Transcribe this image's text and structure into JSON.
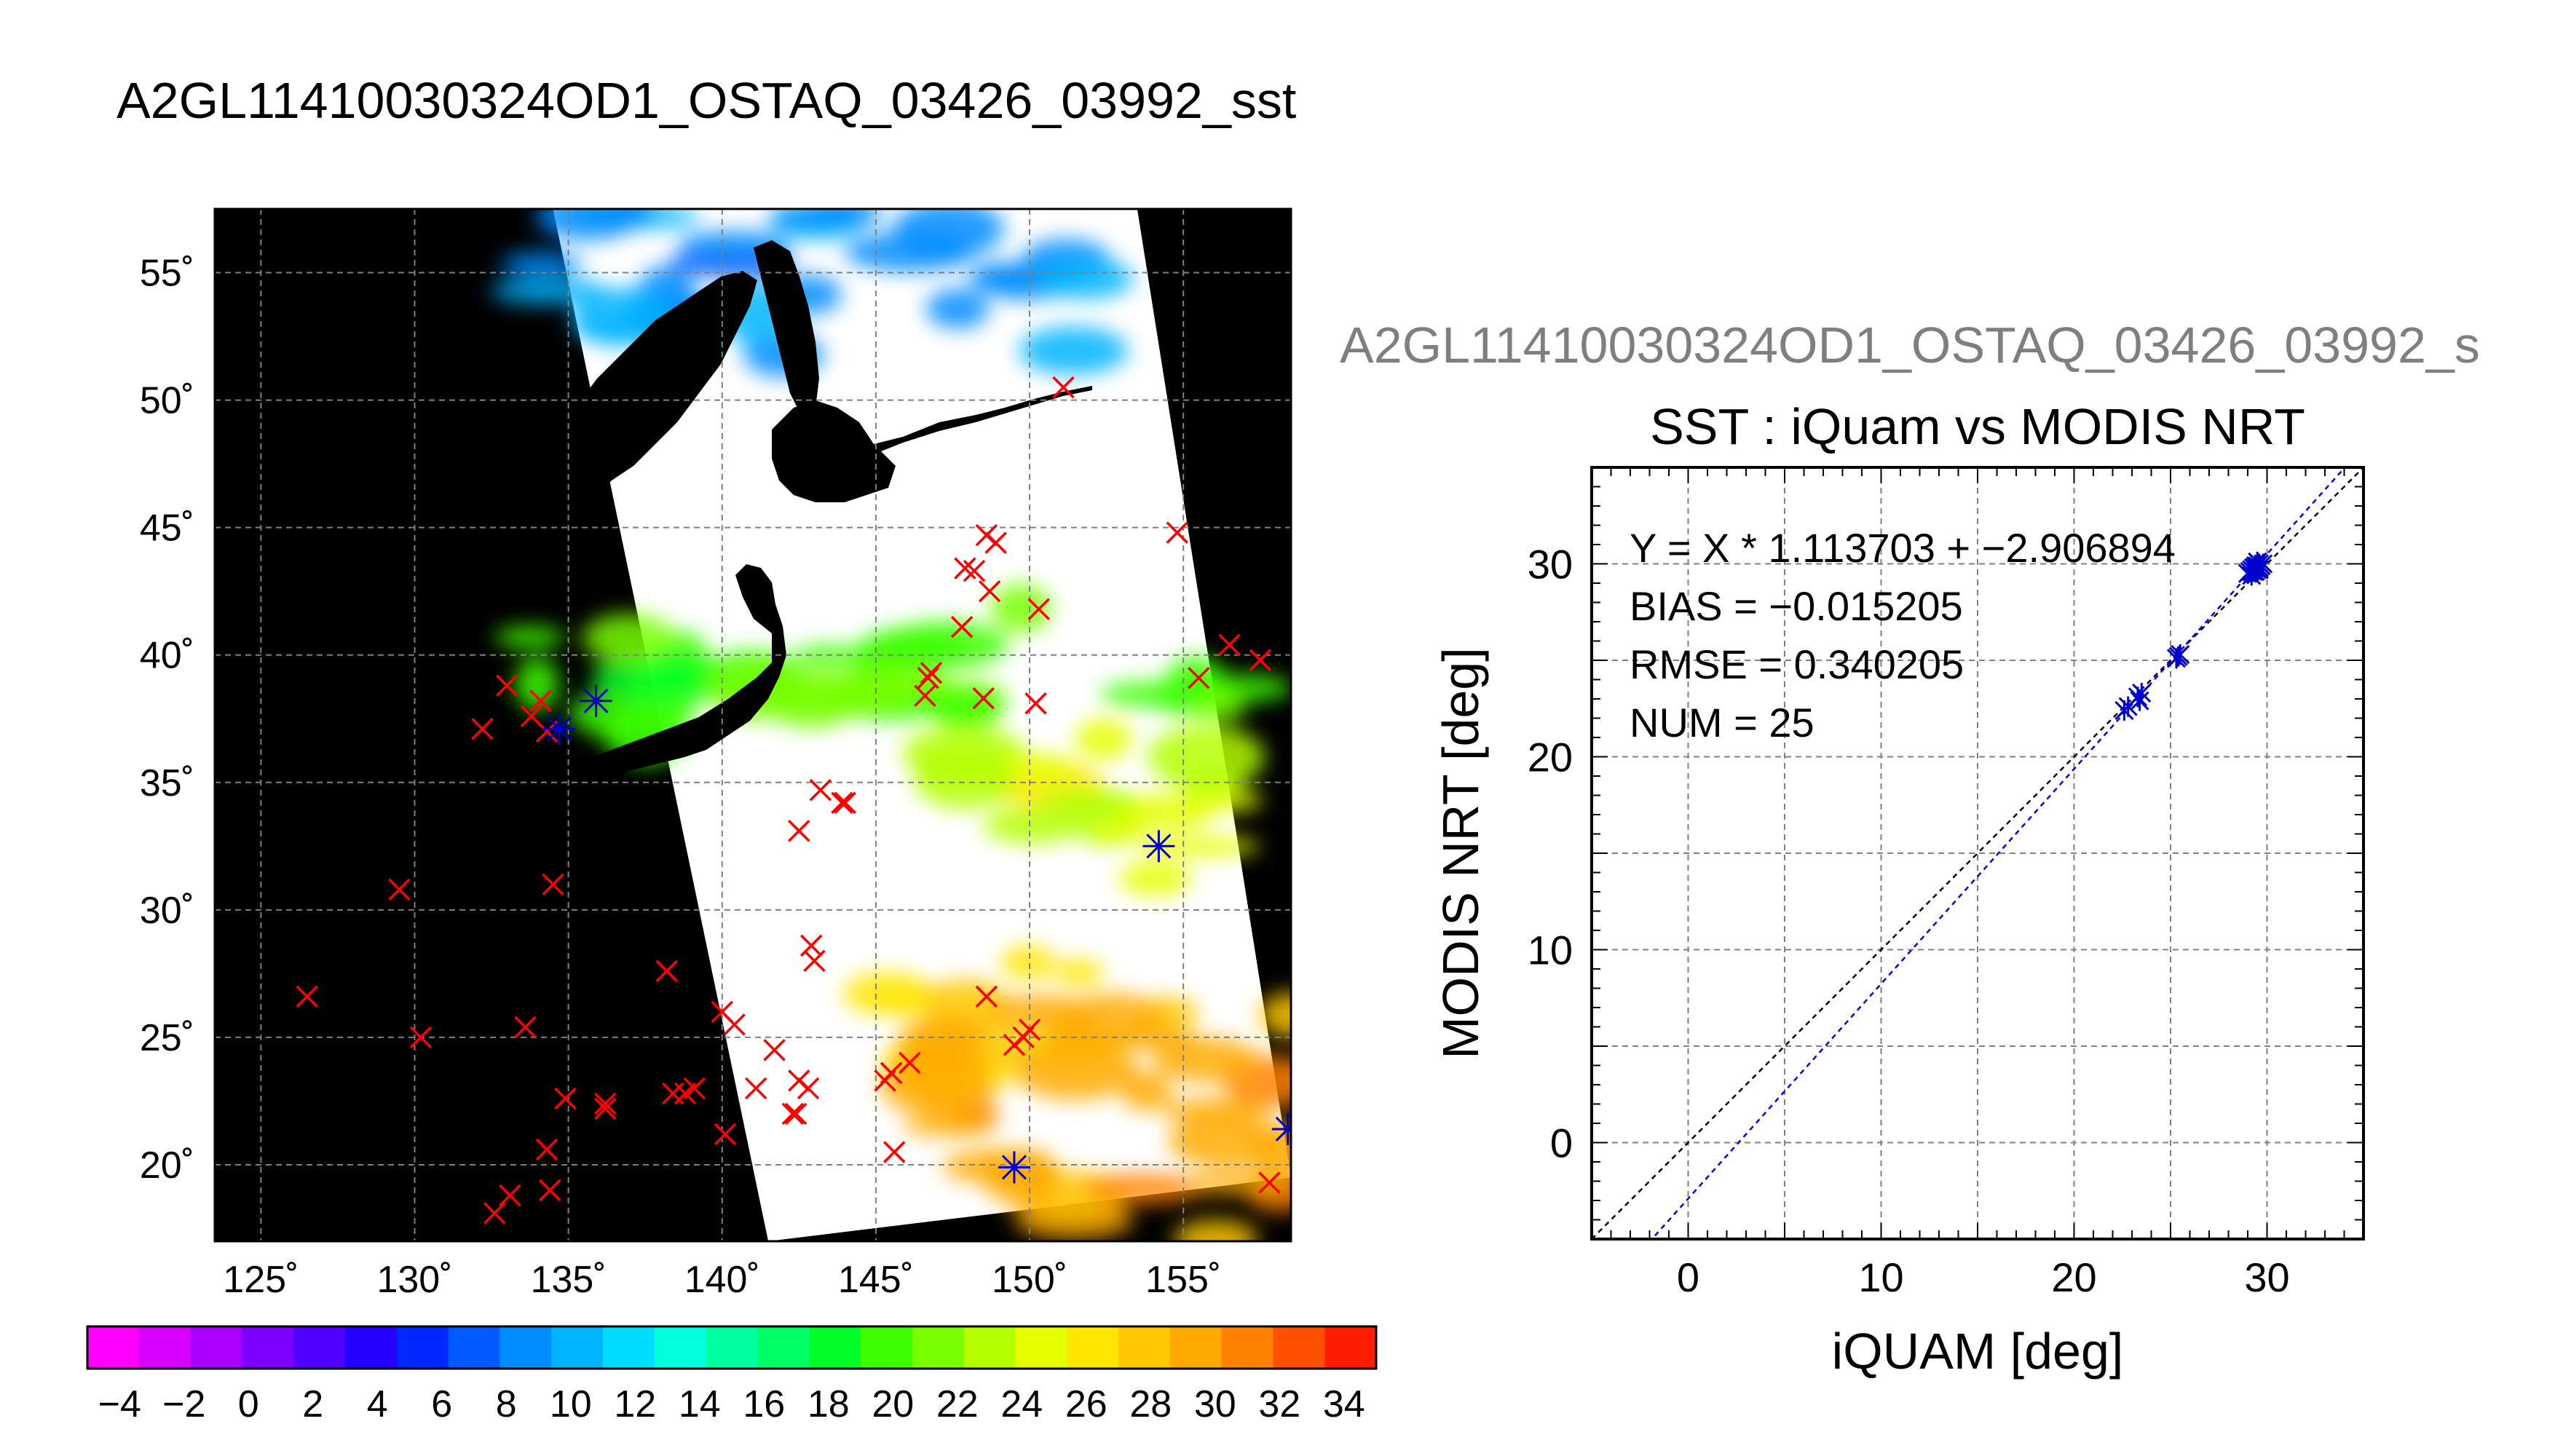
{
  "main_title": "A2GL11410030324OD1_OSTAQ_03426_03992_sst",
  "scatter_header": "A2GL11410030324OD1_OSTAQ_03426_03992_s",
  "colors": {
    "land": "#000000",
    "cloud": "#ffffff",
    "grid": "#808080",
    "insitu_marker": "#ff0000",
    "matchup_marker": "#0000cc",
    "fit_line": "#0000ff",
    "identity_line": "#000000"
  },
  "chart_data": [
    {
      "type": "heatmap",
      "title": "A2GL11410030324OD1_OSTAQ_03426_03992_sst",
      "xlim": [
        123.5,
        158.5
      ],
      "ylim": [
        17,
        57.5
      ],
      "grid": true,
      "x_ticks": [
        125,
        130,
        135,
        140,
        145,
        150,
        155
      ],
      "y_ticks": [
        20,
        25,
        30,
        35,
        40,
        45,
        50,
        55
      ],
      "x_tick_labels": [
        "125˚",
        "130˚",
        "135˚",
        "140˚",
        "145˚",
        "150˚",
        "155˚"
      ],
      "y_tick_labels": [
        "20˚",
        "25˚",
        "30˚",
        "35˚",
        "40˚",
        "45˚",
        "50˚",
        "55˚"
      ],
      "swath_corners": [
        [
          134.5,
          57.5
        ],
        [
          153.5,
          57.5
        ],
        [
          158.5,
          19.5
        ],
        [
          141.5,
          17
        ]
      ],
      "sst_regions": [
        {
          "name": "okhotsk",
          "value_degC": 9,
          "lon": [
            134,
            152
          ],
          "lat": [
            51.5,
            57.5
          ]
        },
        {
          "name": "japan-sea",
          "value_degC": 20,
          "lon": [
            133,
            142
          ],
          "lat": [
            36.5,
            41
          ]
        },
        {
          "name": "north-pacific-band",
          "value_degC": 21,
          "lon": [
            142,
            157
          ],
          "lat": [
            37,
            42
          ]
        },
        {
          "name": "east-of-japan",
          "value_degC": 24,
          "lon": [
            147,
            157
          ],
          "lat": [
            31,
            37
          ]
        },
        {
          "name": "subtropics",
          "value_degC": 27,
          "lon": [
            145,
            152
          ],
          "lat": [
            23,
            28
          ]
        },
        {
          "name": "tropics",
          "value_degC": 29.5,
          "lon": [
            147,
            158.5
          ],
          "lat": [
            17,
            26
          ]
        }
      ],
      "insitu_points": [
        [
          126.5,
          26.6
        ],
        [
          129.5,
          30.8
        ],
        [
          130.2,
          25.0
        ],
        [
          132.2,
          37.1
        ],
        [
          133.0,
          38.8
        ],
        [
          133.6,
          25.4
        ],
        [
          133.8,
          37.6
        ],
        [
          134.1,
          38.2
        ],
        [
          134.3,
          37.0
        ],
        [
          134.5,
          31.0
        ],
        [
          134.3,
          20.6
        ],
        [
          134.4,
          19.0
        ],
        [
          133.1,
          18.8
        ],
        [
          132.6,
          18.1
        ],
        [
          134.9,
          22.6
        ],
        [
          136.2,
          22.4
        ],
        [
          136.2,
          22.2
        ],
        [
          138.2,
          27.6
        ],
        [
          138.4,
          22.8
        ],
        [
          138.8,
          22.8
        ],
        [
          139.1,
          23.0
        ],
        [
          140.0,
          26.0
        ],
        [
          140.4,
          25.5
        ],
        [
          140.1,
          21.2
        ],
        [
          141.1,
          23.0
        ],
        [
          141.7,
          24.5
        ],
        [
          142.3,
          22.0
        ],
        [
          142.4,
          22.0
        ],
        [
          142.5,
          23.3
        ],
        [
          142.8,
          23.0
        ],
        [
          142.9,
          28.6
        ],
        [
          143.0,
          28.0
        ],
        [
          142.5,
          33.1
        ],
        [
          143.2,
          34.7
        ],
        [
          143.9,
          34.2
        ],
        [
          144.0,
          34.2
        ],
        [
          145.3,
          23.3
        ],
        [
          145.5,
          23.6
        ],
        [
          146.1,
          24.0
        ],
        [
          145.6,
          20.5
        ],
        [
          146.6,
          38.4
        ],
        [
          146.7,
          39.1
        ],
        [
          146.8,
          39.3
        ],
        [
          147.8,
          41.1
        ],
        [
          147.9,
          43.4
        ],
        [
          148.2,
          43.3
        ],
        [
          148.6,
          44.7
        ],
        [
          148.9,
          44.4
        ],
        [
          148.5,
          38.3
        ],
        [
          148.7,
          42.5
        ],
        [
          148.6,
          26.6
        ],
        [
          149.5,
          24.7
        ],
        [
          149.8,
          25.0
        ],
        [
          150.0,
          25.3
        ],
        [
          150.2,
          38.1
        ],
        [
          150.3,
          41.8
        ],
        [
          151.1,
          50.5
        ],
        [
          154.8,
          44.8
        ],
        [
          155.5,
          39.1
        ],
        [
          156.5,
          40.4
        ],
        [
          157.5,
          39.8
        ],
        [
          157.8,
          19.3
        ]
      ],
      "matchup_points": [
        [
          134.7,
          37.1
        ],
        [
          135.9,
          38.2
        ],
        [
          149.5,
          19.9
        ],
        [
          154.2,
          32.5
        ],
        [
          158.4,
          21.4
        ]
      ]
    },
    {
      "type": "scatter",
      "title": "SST : iQuam vs MODIS NRT",
      "xlabel": "iQUAM [deg]",
      "ylabel": "MODIS NRT [deg]",
      "xlim": [
        -5,
        35
      ],
      "ylim": [
        -5,
        35
      ],
      "x_ticks": [
        0,
        10,
        20,
        30
      ],
      "y_ticks": [
        0,
        10,
        20,
        30
      ],
      "grid": true,
      "stats": [
        "Y = X * 1.113703 + −2.906894",
        "BIAS = −0.015205",
        "RMSE = 0.340205",
        "NUM = 25"
      ],
      "fit": {
        "slope": 1.113703,
        "intercept": -2.906894
      },
      "points": [
        [
          22.6,
          22.4
        ],
        [
          22.8,
          22.6
        ],
        [
          23.3,
          23.1
        ],
        [
          23.5,
          23.3
        ],
        [
          23.4,
          22.9
        ],
        [
          25.4,
          25.2
        ],
        [
          25.5,
          25.3
        ],
        [
          25.3,
          25.1
        ],
        [
          29.0,
          29.5
        ],
        [
          29.2,
          29.7
        ],
        [
          29.3,
          29.6
        ],
        [
          29.4,
          29.8
        ],
        [
          29.5,
          29.9
        ],
        [
          29.6,
          30.0
        ],
        [
          29.7,
          29.9
        ],
        [
          29.2,
          29.4
        ],
        [
          29.4,
          29.6
        ],
        [
          29.5,
          29.7
        ],
        [
          29.6,
          29.8
        ],
        [
          29.3,
          29.8
        ],
        [
          29.5,
          30.1
        ],
        [
          29.8,
          30.0
        ],
        [
          29.1,
          29.6
        ],
        [
          29.4,
          29.9
        ],
        [
          29.6,
          29.7
        ]
      ]
    }
  ],
  "colorbar": {
    "tick_labels": [
      "−4",
      "−2",
      "0",
      "2",
      "4",
      "6",
      "8",
      "10",
      "12",
      "14",
      "16",
      "18",
      "20",
      "22",
      "24",
      "26",
      "28",
      "30",
      "32",
      "34"
    ],
    "range": [
      -5,
      35
    ],
    "colors": [
      "#ff00ff",
      "#d700ff",
      "#aa00ff",
      "#7d00ff",
      "#5000ff",
      "#2300ff",
      "#0028ff",
      "#005aff",
      "#008cff",
      "#00b4ff",
      "#00dcff",
      "#00ffdc",
      "#00ffa0",
      "#00ff64",
      "#00ff28",
      "#3cff00",
      "#78ff00",
      "#b4ff00",
      "#e6ff00",
      "#ffe600",
      "#ffc800",
      "#ffaa00",
      "#ff8200",
      "#ff5000",
      "#ff1e00"
    ]
  }
}
